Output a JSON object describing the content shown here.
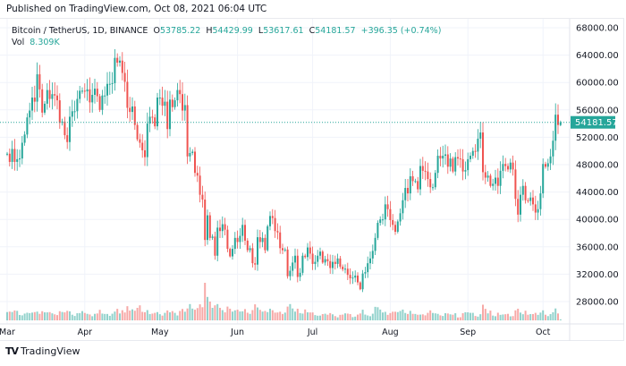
{
  "published": "Published on TradingView.com, Oct 08, 2021 06:04 UTC",
  "legend": {
    "symbol": "Bitcoin / TetherUS, 1D, BINANCE",
    "o_label": "O",
    "o": "53785.22",
    "h_label": "H",
    "h": "54429.99",
    "l_label": "L",
    "l": "53617.61",
    "c_label": "C",
    "c": "54181.57",
    "change": "+396.35 (+0.74%)",
    "vol_label": "Vol",
    "vol": "8.309K"
  },
  "brand": "TradingView",
  "colors": {
    "up": "#26a69a",
    "down": "#ef5350",
    "grid": "#f0f3fa",
    "last_price": "#26a69a"
  },
  "chart_data": {
    "type": "candlestick",
    "interval": "1D",
    "start_date": "2021-03-01",
    "end_date": "2021-10-08",
    "y_ticks": [
      "68000.00",
      "64000.00",
      "60000.00",
      "56000.00",
      "52000.00",
      "48000.00",
      "44000.00",
      "40000.00",
      "36000.00",
      "32000.00",
      "28000.00"
    ],
    "ylim": [
      26000,
      69500
    ],
    "x_ticks": [
      {
        "label": "Mar",
        "date": "2021-03-01"
      },
      {
        "label": "Apr",
        "date": "2021-04-01"
      },
      {
        "label": "May",
        "date": "2021-05-01"
      },
      {
        "label": "Jun",
        "date": "2021-06-01"
      },
      {
        "label": "Jul",
        "date": "2021-07-01"
      },
      {
        "label": "Aug",
        "date": "2021-08-01"
      },
      {
        "label": "Sep",
        "date": "2021-09-01"
      },
      {
        "label": "Oct",
        "date": "2021-10-01"
      }
    ],
    "last_price": "54181.57",
    "first_open": 49500,
    "last_candle": {
      "open": 53785.22,
      "high": 54429.99,
      "low": 53617.61,
      "close": 54181.57
    },
    "close_k": [
      49.6,
      48.4,
      50.3,
      48.4,
      48.8,
      48.9,
      51.2,
      52.4,
      54.9,
      55.9,
      57.8,
      57.2,
      61.2,
      59.0,
      55.6,
      56.9,
      58.9,
      57.6,
      58.3,
      58.1,
      57.4,
      54.1,
      54.3,
      52.3,
      51.3,
      55.0,
      55.8,
      55.8,
      57.6,
      58.8,
      58.8,
      58.7,
      59.0,
      57.1,
      58.2,
      59.1,
      58.0,
      56.0,
      58.1,
      58.1,
      59.8,
      59.8,
      59.9,
      63.6,
      62.9,
      63.2,
      61.4,
      60.1,
      56.3,
      55.7,
      56.5,
      53.8,
      51.7,
      51.2,
      50.1,
      49.1,
      54.0,
      55.0,
      54.9,
      53.6,
      57.8,
      57.8,
      56.6,
      57.2,
      53.2,
      57.5,
      56.4,
      57.4,
      58.9,
      58.3,
      55.9,
      56.7,
      49.2,
      49.7,
      49.9,
      46.8,
      46.4,
      43.6,
      42.9,
      37.0,
      40.6,
      37.3,
      37.5,
      34.7,
      38.8,
      38.3,
      39.3,
      38.5,
      35.7,
      34.6,
      35.7,
      37.3,
      36.7,
      37.6,
      39.2,
      36.9,
      35.5,
      35.8,
      33.6,
      33.4,
      37.4,
      36.7,
      37.3,
      35.5,
      39.0,
      40.5,
      40.2,
      38.3,
      38.1,
      35.8,
      35.5,
      35.6,
      31.7,
      32.5,
      33.7,
      34.7,
      31.6,
      32.2,
      34.7,
      34.5,
      35.9,
      35.0,
      33.5,
      33.8,
      34.7,
      35.3,
      33.7,
      34.2,
      33.9,
      32.9,
      33.8,
      33.5,
      34.3,
      33.1,
      32.7,
      32.8,
      31.9,
      31.4,
      31.5,
      31.8,
      30.8,
      29.8,
      32.1,
      32.3,
      33.6,
      34.3,
      35.4,
      37.3,
      39.5,
      40.0,
      40.0,
      42.2,
      41.5,
      39.9,
      39.2,
      38.2,
      39.7,
      40.9,
      42.8,
      44.6,
      43.8,
      46.3,
      45.6,
      45.6,
      44.4,
      47.8,
      47.1,
      47.0,
      45.9,
      44.7,
      44.7,
      46.8,
      49.3,
      48.9,
      49.3,
      49.5,
      47.7,
      48.9,
      47.0,
      49.1,
      48.9,
      48.8,
      47.0,
      47.2,
      48.8,
      49.3,
      50.0,
      49.9,
      51.8,
      52.7,
      46.9,
      46.1,
      46.4,
      44.9,
      45.2,
      46.1,
      44.9,
      47.1,
      48.1,
      47.8,
      47.3,
      48.3,
      47.3,
      43.0,
      40.7,
      43.6,
      44.9,
      42.8,
      42.7,
      43.2,
      42.2,
      41.0,
      41.5,
      43.8,
      48.1,
      47.7,
      48.2,
      49.2,
      51.5,
      55.3,
      53.8,
      54.18
    ],
    "volume_k": [
      66,
      70,
      67,
      79,
      76,
      43,
      40,
      54,
      61,
      58,
      62,
      66,
      70,
      52,
      73,
      64,
      64,
      66,
      56,
      48,
      42,
      73,
      67,
      64,
      76,
      72,
      45,
      35,
      57,
      58,
      74,
      59,
      52,
      47,
      33,
      52,
      55,
      84,
      54,
      51,
      51,
      36,
      53,
      70,
      92,
      55,
      81,
      63,
      113,
      78,
      88,
      77,
      100,
      120,
      68,
      65,
      82,
      50,
      54,
      60,
      66,
      49,
      38,
      60,
      79,
      64,
      74,
      60,
      39,
      75,
      91,
      69,
      95,
      130,
      94,
      85,
      98,
      128,
      105,
      300,
      187,
      150,
      100,
      120,
      130,
      100,
      82,
      64,
      110,
      93,
      70,
      80,
      85,
      71,
      72,
      90,
      61,
      52,
      82,
      128,
      103,
      84,
      70,
      75,
      66,
      93,
      81,
      62,
      63,
      69,
      51,
      62,
      110,
      130,
      95,
      70,
      93,
      58,
      54,
      87,
      64,
      63,
      63,
      42,
      37,
      38,
      50,
      53,
      45,
      58,
      48,
      34,
      24,
      44,
      46,
      56,
      54,
      50,
      26,
      30,
      46,
      55,
      85,
      46,
      39,
      33,
      53,
      108,
      105,
      86,
      63,
      68,
      44,
      58,
      69,
      69,
      66,
      75,
      86,
      59,
      51,
      76,
      52,
      51,
      45,
      46,
      48,
      40,
      60,
      80,
      59,
      56,
      52,
      40,
      35,
      57,
      55,
      48,
      45,
      57,
      23,
      25,
      57,
      65,
      64,
      60,
      60,
      35,
      30,
      49,
      125,
      92,
      56,
      78,
      38,
      33,
      61,
      44,
      47,
      49,
      52,
      32,
      34,
      80,
      93,
      62,
      49,
      77,
      45,
      50,
      50,
      60,
      44,
      62,
      80,
      45,
      34,
      50,
      65,
      95,
      55,
      8.309
    ]
  }
}
